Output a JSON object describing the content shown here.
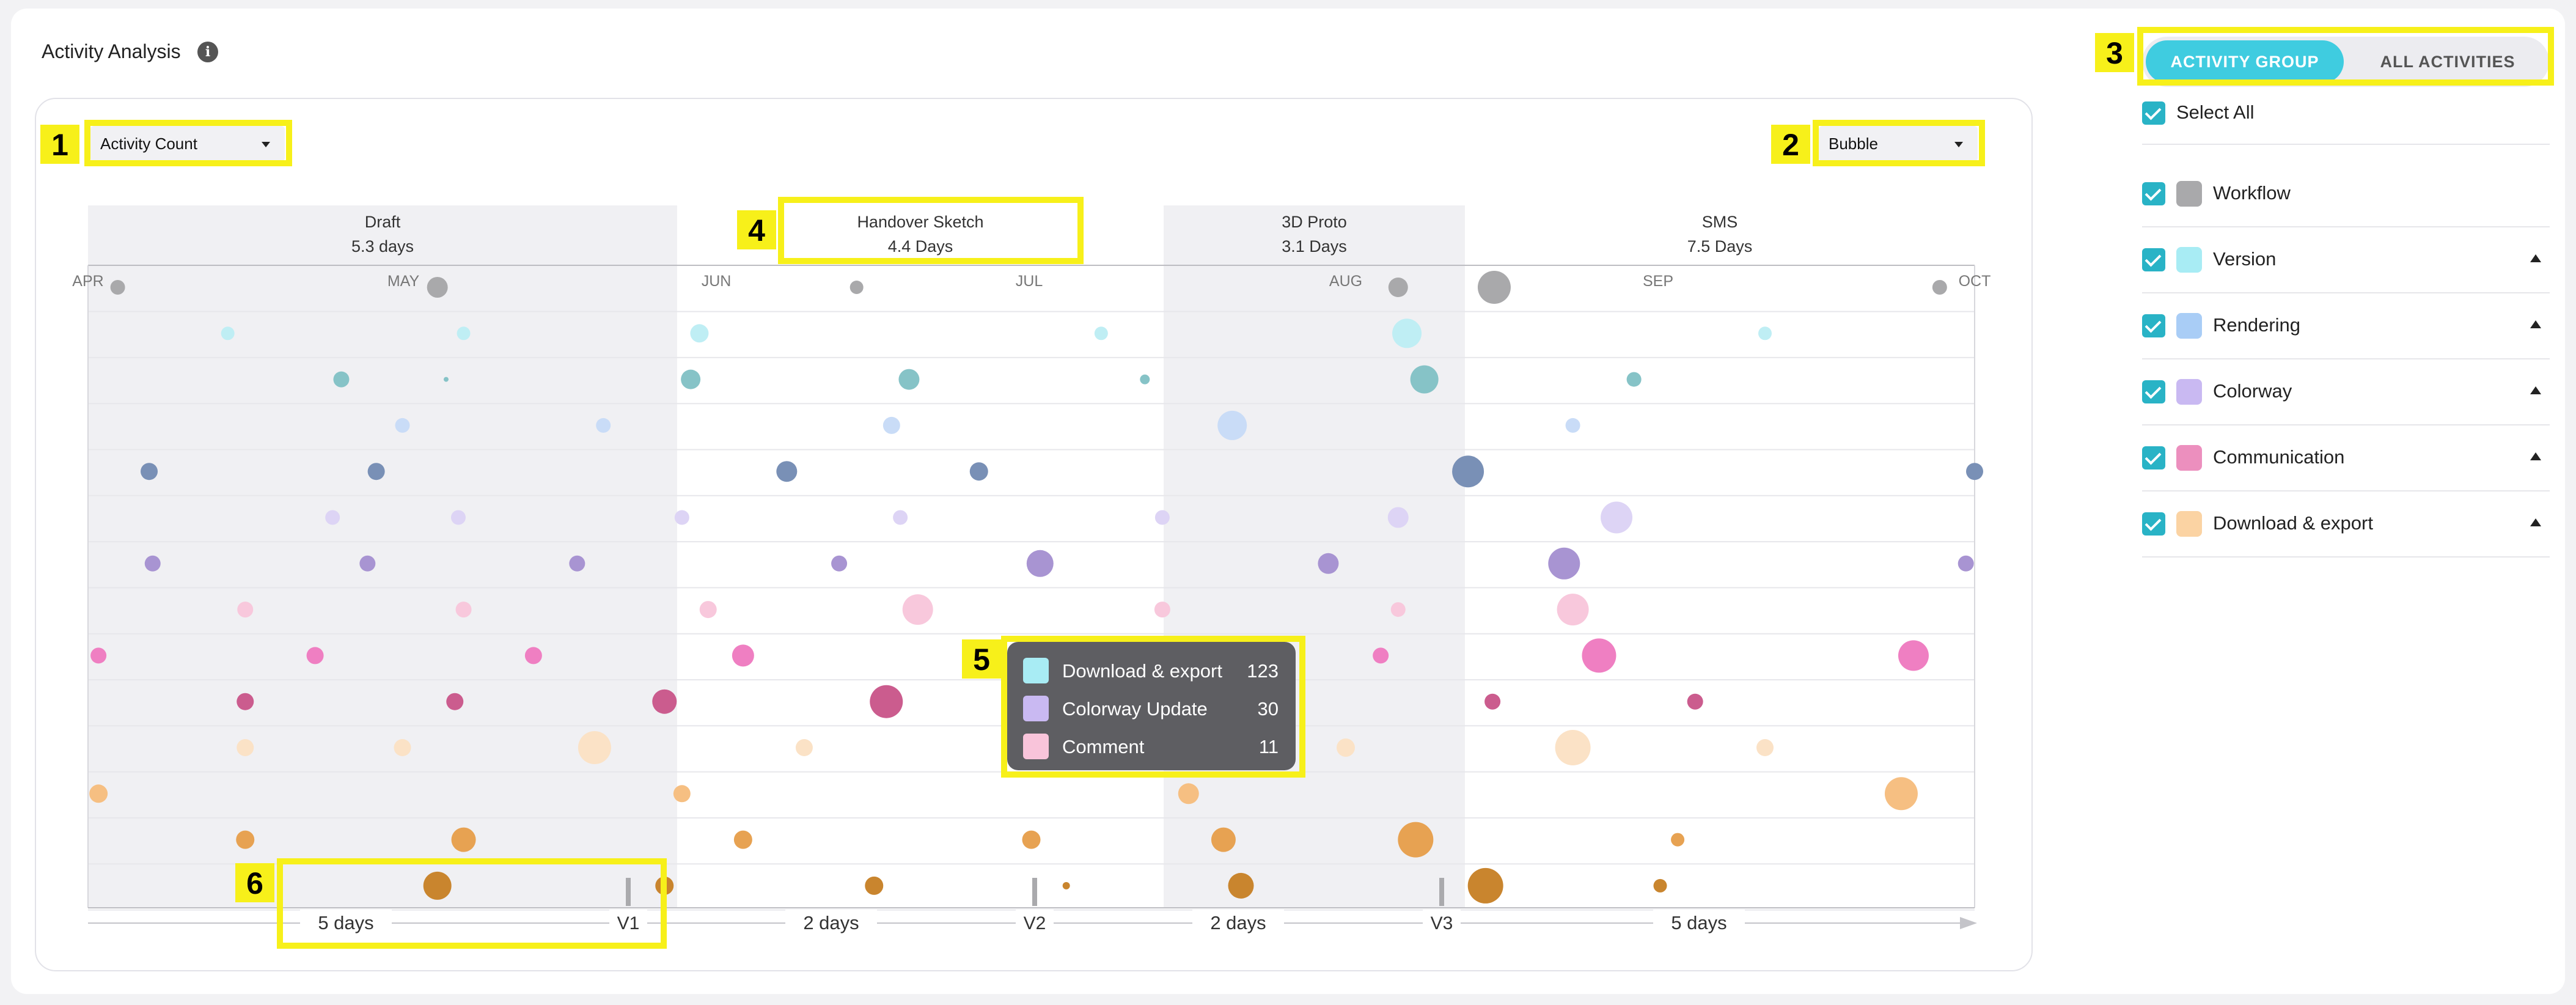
{
  "header": {
    "title": "Activity Analysis",
    "info_icon": "info-icon"
  },
  "controls": {
    "metric_select": {
      "value": "Activity Count"
    },
    "chart_type_select": {
      "value": "Bubble"
    },
    "view_toggle": {
      "active": "ACTIVITY GROUP",
      "inactive": "ALL ACTIVITIES"
    }
  },
  "annotations": [
    "1",
    "2",
    "3",
    "4",
    "5",
    "6"
  ],
  "chart_data": {
    "type": "scatter",
    "subtype": "bubble",
    "phases": [
      {
        "name": "Draft",
        "duration": "5.3 days",
        "shaded": true
      },
      {
        "name": "Handover Sketch",
        "duration": "4.4 Days",
        "shaded": false
      },
      {
        "name": "3D Proto",
        "duration": "3.1 Days",
        "shaded": true
      },
      {
        "name": "SMS",
        "duration": "7.5 Days",
        "shaded": false
      }
    ],
    "x_ticks": [
      "APR",
      "MAY",
      "JUN",
      "JUL",
      "AUG",
      "SEP",
      "OCT"
    ],
    "row_colors": [
      "#a9a9ab",
      "#bfeef4",
      "#86c3c7",
      "#c9dcf7",
      "#7990b6",
      "#ddd4f5",
      "#a894d2",
      "#f8c8dc",
      "#ef7fc2",
      "#cb5c8e",
      "#fbe2c6",
      "#f6bf82",
      "#e7a252",
      "#c9852e"
    ],
    "bubbles": [
      [
        [
          0.17,
          24
        ],
        [
          2.0,
          34
        ],
        [
          4.4,
          22
        ],
        [
          7.5,
          32
        ],
        [
          8.05,
          54
        ],
        [
          10.6,
          24
        ]
      ],
      [
        [
          0.8,
          22
        ],
        [
          2.15,
          22
        ],
        [
          3.5,
          30
        ],
        [
          5.8,
          22
        ],
        [
          7.55,
          48
        ],
        [
          9.6,
          22
        ]
      ],
      [
        [
          1.45,
          26
        ],
        [
          2.05,
          8
        ],
        [
          3.45,
          32
        ],
        [
          4.7,
          34
        ],
        [
          6.05,
          16
        ],
        [
          7.65,
          46
        ],
        [
          8.85,
          24
        ]
      ],
      [
        [
          1.8,
          24
        ],
        [
          2.95,
          24
        ],
        [
          4.6,
          28
        ],
        [
          6.55,
          48
        ],
        [
          8.5,
          24
        ]
      ],
      [
        [
          0.35,
          28
        ],
        [
          1.65,
          28
        ],
        [
          4.0,
          34
        ],
        [
          5.1,
          30
        ],
        [
          7.9,
          52
        ],
        [
          10.8,
          28
        ]
      ],
      [
        [
          1.4,
          24
        ],
        [
          2.12,
          24
        ],
        [
          3.4,
          24
        ],
        [
          4.65,
          24
        ],
        [
          6.15,
          24
        ],
        [
          7.5,
          34
        ],
        [
          8.75,
          52
        ]
      ],
      [
        [
          0.37,
          26
        ],
        [
          1.6,
          26
        ],
        [
          2.8,
          26
        ],
        [
          4.3,
          26
        ],
        [
          5.45,
          44
        ],
        [
          7.1,
          34
        ],
        [
          8.45,
          52
        ],
        [
          10.75,
          26
        ]
      ],
      [
        [
          0.9,
          26
        ],
        [
          2.15,
          26
        ],
        [
          3.55,
          28
        ],
        [
          4.75,
          50
        ],
        [
          6.15,
          26
        ],
        [
          7.5,
          24
        ],
        [
          8.5,
          52
        ]
      ],
      [
        [
          0.06,
          26
        ],
        [
          1.3,
          28
        ],
        [
          2.55,
          28
        ],
        [
          3.75,
          36
        ],
        [
          5.5,
          62
        ],
        [
          6.1,
          28
        ],
        [
          7.4,
          26
        ],
        [
          8.65,
          56
        ],
        [
          10.45,
          50
        ]
      ],
      [
        [
          0.9,
          28
        ],
        [
          2.1,
          28
        ],
        [
          3.3,
          40
        ],
        [
          4.57,
          54
        ],
        [
          6.16,
          26
        ],
        [
          6.84,
          28
        ],
        [
          8.04,
          26
        ],
        [
          9.2,
          26
        ]
      ],
      [
        [
          0.9,
          28
        ],
        [
          1.8,
          28
        ],
        [
          2.9,
          54
        ],
        [
          4.1,
          28
        ],
        [
          7.2,
          30
        ],
        [
          8.5,
          58
        ],
        [
          9.6,
          28
        ]
      ],
      [
        [
          0.06,
          30
        ],
        [
          3.4,
          28
        ],
        [
          6.3,
          34
        ],
        [
          10.38,
          54
        ]
      ],
      [
        [
          0.9,
          30
        ],
        [
          2.15,
          40
        ],
        [
          3.75,
          30
        ],
        [
          5.4,
          30
        ],
        [
          6.5,
          40
        ],
        [
          7.6,
          58
        ],
        [
          9.1,
          22
        ]
      ],
      [
        [
          0.9,
          30
        ],
        [
          2.0,
          46
        ],
        [
          3.3,
          30
        ],
        [
          4.5,
          30
        ],
        [
          5.6,
          12
        ],
        [
          6.6,
          42
        ],
        [
          8.0,
          58
        ],
        [
          9.0,
          22
        ]
      ]
    ],
    "milestones": [
      "V1",
      "V2",
      "V3"
    ],
    "intervals": [
      "5 days",
      "2 days",
      "2 days",
      "5 days"
    ],
    "legend": []
  },
  "tooltip": {
    "rows": [
      {
        "label": "Download & export",
        "value": "123",
        "color": "#a8ecf4"
      },
      {
        "label": "Colorway Update",
        "value": "30",
        "color": "#c9b9f2"
      },
      {
        "label": "Comment",
        "value": "11",
        "color": "#f9c4da"
      }
    ]
  },
  "sidebar": {
    "select_all": "Select All",
    "groups": [
      {
        "label": "Workflow",
        "color": "#a9a9ab",
        "expandable": false
      },
      {
        "label": "Version",
        "color": "#a8ecf4",
        "expandable": true
      },
      {
        "label": "Rendering",
        "color": "#a9cdf6",
        "expandable": true
      },
      {
        "label": "Colorway",
        "color": "#c9b9f2",
        "expandable": true
      },
      {
        "label": "Communication",
        "color": "#ec8fbe",
        "expandable": true
      },
      {
        "label": "Download & export",
        "color": "#fbd3a3",
        "expandable": true
      }
    ]
  }
}
